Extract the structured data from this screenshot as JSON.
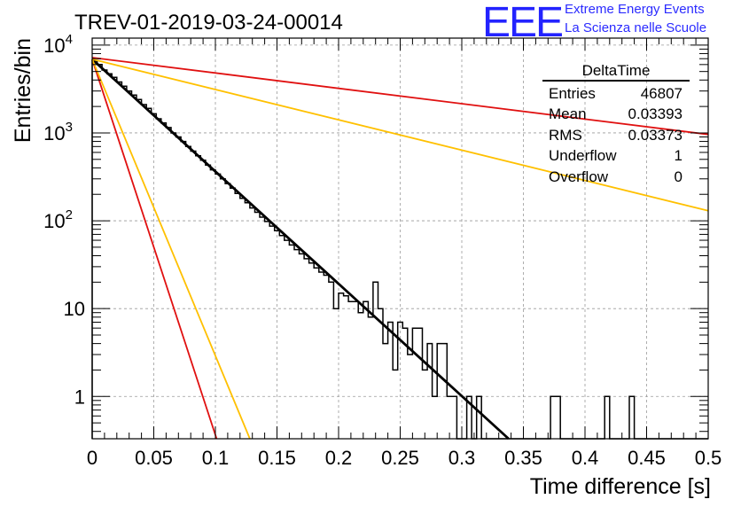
{
  "brand": {
    "logo": "EEE",
    "line1": "Extreme Energy Events",
    "line2": "La Scienza nelle Scuole"
  },
  "colors": {
    "histogram": "#000000",
    "fit": "#000000",
    "red_reference": "#e01010",
    "orange_reference": "#ffc000",
    "brand": "#2323ff",
    "grid": "#9a9a9a"
  },
  "stats_box": {
    "title": "DeltaTime",
    "rows": [
      {
        "label": "Entries",
        "value": "46807"
      },
      {
        "label": "Mean",
        "value": "0.03393"
      },
      {
        "label": "RMS",
        "value": "0.03373"
      },
      {
        "label": "Underflow",
        "value": "1"
      },
      {
        "label": "Overflow",
        "value": "0"
      }
    ]
  },
  "chart_data": {
    "type": "line",
    "title": "TREV-01-2019-03-24-00014",
    "xlabel": "Time difference [s]",
    "ylabel": "Entries/bin",
    "xlim": [
      0,
      0.5
    ],
    "ylim": [
      0.33,
      12000
    ],
    "yscale": "log",
    "grid": true,
    "legend": "top-right",
    "x_ticks": [
      "0",
      "0.05",
      "0.1",
      "0.15",
      "0.2",
      "0.25",
      "0.3",
      "0.35",
      "0.4",
      "0.45",
      "0.5"
    ],
    "y_ticks": [
      {
        "base": "10",
        "exp": "4",
        "value": 10000
      },
      {
        "base": "10",
        "exp": "3",
        "value": 1000
      },
      {
        "base": "10",
        "exp": "2",
        "value": 100
      },
      {
        "base": "10",
        "exp": "",
        "value": 10
      },
      {
        "base": "1",
        "exp": "",
        "value": 1
      }
    ],
    "histogram": {
      "bin_width": 0.004,
      "x_start": 0,
      "values": [
        6700,
        6000,
        5200,
        4700,
        4300,
        3800,
        3400,
        3000,
        2700,
        2400,
        2100,
        1900,
        1650,
        1450,
        1300,
        1150,
        1000,
        900,
        800,
        700,
        620,
        550,
        490,
        430,
        380,
        340,
        300,
        265,
        235,
        205,
        180,
        160,
        140,
        125,
        110,
        98,
        87,
        77,
        68,
        60,
        53,
        47,
        42,
        37,
        33,
        29,
        26,
        24,
        21,
        17,
        15,
        14,
        12,
        10,
        9,
        8,
        7,
        6,
        5,
        4.5,
        4,
        3.5,
        3,
        2.7,
        2.3,
        2,
        1.8,
        1.5,
        1,
        1,
        1,
        1,
        1,
        1,
        0,
        0,
        0,
        0,
        0,
        0,
        0,
        0,
        0,
        0,
        0,
        0,
        0,
        0,
        0,
        0,
        0,
        0,
        0,
        0,
        0,
        0,
        0,
        0,
        0,
        0,
        0,
        0,
        0,
        0,
        0,
        0,
        0,
        0,
        0,
        0,
        0,
        0,
        0,
        0,
        0,
        0,
        0,
        0,
        0,
        0,
        0,
        0,
        0,
        0,
        0
      ],
      "overrides": [
        {
          "x": 0.192,
          "value": 20
        },
        {
          "x": 0.196,
          "value": 10
        },
        {
          "x": 0.212,
          "value": 12
        },
        {
          "x": 0.22,
          "value": 12
        },
        {
          "x": 0.224,
          "value": 8
        },
        {
          "x": 0.228,
          "value": 20
        },
        {
          "x": 0.232,
          "value": 10
        },
        {
          "x": 0.236,
          "value": 4
        },
        {
          "x": 0.24,
          "value": 7
        },
        {
          "x": 0.244,
          "value": 2
        },
        {
          "x": 0.248,
          "value": 7
        },
        {
          "x": 0.252,
          "value": 6
        },
        {
          "x": 0.256,
          "value": 3
        },
        {
          "x": 0.26,
          "value": 6
        },
        {
          "x": 0.264,
          "value": 6
        },
        {
          "x": 0.268,
          "value": 2
        },
        {
          "x": 0.272,
          "value": 4
        },
        {
          "x": 0.276,
          "value": 1
        },
        {
          "x": 0.28,
          "value": 4
        },
        {
          "x": 0.284,
          "value": 4
        },
        {
          "x": 0.288,
          "value": 1
        },
        {
          "x": 0.292,
          "value": 1
        },
        {
          "x": 0.296,
          "value": 0
        },
        {
          "x": 0.3,
          "value": 0
        },
        {
          "x": 0.304,
          "value": 1
        },
        {
          "x": 0.308,
          "value": 0
        },
        {
          "x": 0.312,
          "value": 1
        },
        {
          "x": 0.372,
          "value": 1
        },
        {
          "x": 0.376,
          "value": 1
        },
        {
          "x": 0.416,
          "value": 1
        },
        {
          "x": 0.436,
          "value": 1
        }
      ]
    },
    "series": [
      {
        "color": "#000000",
        "x": [
          0,
          0.338
        ],
        "y": [
          6900,
          0.33
        ]
      },
      {
        "color": "#e01010",
        "x": [
          0,
          0.5
        ],
        "y": [
          7200,
          960
        ]
      },
      {
        "color": "#ffc000",
        "x": [
          0,
          0.5
        ],
        "y": [
          6900,
          130
        ]
      },
      {
        "color": "#e01010",
        "x": [
          0,
          0.101
        ],
        "y": [
          6900,
          0.33
        ]
      },
      {
        "color": "#ffc000",
        "x": [
          0,
          0.128
        ],
        "y": [
          6900,
          0.33
        ]
      }
    ]
  }
}
